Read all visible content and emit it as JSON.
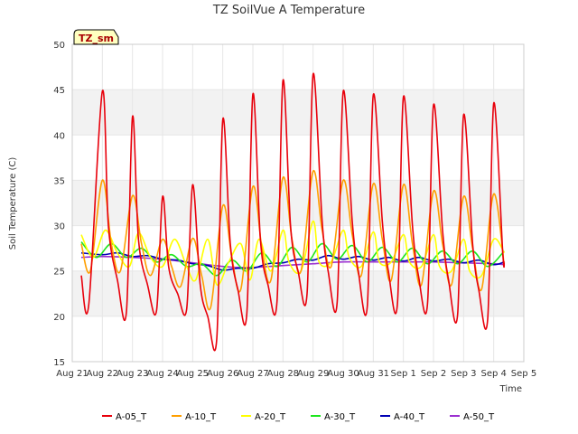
{
  "chart_data": {
    "type": "line",
    "title": "TZ SoilVue A Temperature",
    "xlabel": "Time",
    "ylabel": "Soil Temperature (C)",
    "ylim": [
      15,
      50
    ],
    "yticks": [
      15,
      20,
      25,
      30,
      35,
      40,
      45,
      50
    ],
    "xticks": [
      "Aug 21",
      "Aug 22",
      "Aug 23",
      "Aug 24",
      "Aug 25",
      "Aug 26",
      "Aug 27",
      "Aug 28",
      "Aug 29",
      "Aug 30",
      "Aug 31",
      "Sep 1",
      "Sep 2",
      "Sep 3",
      "Sep 4",
      "Sep 5"
    ],
    "xlim_days": [
      0,
      15
    ],
    "station_badge": "TZ_sm",
    "banding": "alternating grey bands",
    "legend_position": "bottom",
    "series": [
      {
        "name": "A-05_T",
        "color": "#e8000b",
        "x": [
          0.3,
          0.55,
          1.0,
          1.2,
          1.5,
          1.8,
          2.0,
          2.2,
          2.5,
          2.8,
          3.0,
          3.2,
          3.5,
          3.8,
          4.0,
          4.25,
          4.5,
          4.8,
          5.0,
          5.25,
          5.5,
          5.8,
          6.0,
          6.25,
          6.5,
          6.8,
          7.0,
          7.25,
          7.5,
          7.8,
          8.0,
          8.3,
          8.5,
          8.8,
          9.0,
          9.3,
          9.5,
          9.8,
          10.0,
          10.3,
          10.5,
          10.8,
          11.0,
          11.3,
          11.5,
          11.8,
          12.0,
          12.3,
          12.5,
          12.8,
          13.0,
          13.3,
          13.5,
          13.8,
          14.0,
          14.3,
          14.35
        ],
        "y": [
          24.5,
          21.3,
          44.8,
          30.0,
          24.0,
          20.5,
          42.0,
          28.5,
          23.5,
          20.6,
          33.2,
          25.5,
          22.5,
          20.8,
          34.5,
          23.5,
          20.0,
          17.5,
          41.7,
          28.0,
          23.0,
          20.3,
          44.5,
          28.5,
          23.5,
          21.6,
          46.0,
          30.0,
          25.0,
          22.5,
          46.7,
          30.5,
          25.0,
          21.5,
          44.8,
          30.5,
          25.0,
          21.1,
          44.4,
          30.5,
          25.0,
          21.3,
          44.2,
          30.0,
          24.5,
          21.3,
          43.3,
          29.5,
          24.0,
          20.2,
          42.2,
          28.0,
          23.0,
          19.7,
          43.5,
          27.0,
          26.0
        ]
      },
      {
        "name": "A-10_T",
        "color": "#ff9f00",
        "x": [
          0.3,
          0.6,
          1.0,
          1.3,
          1.6,
          2.0,
          2.3,
          2.6,
          3.0,
          3.3,
          3.6,
          4.0,
          4.3,
          4.6,
          5.0,
          5.3,
          5.6,
          6.0,
          6.3,
          6.6,
          7.0,
          7.3,
          7.6,
          8.0,
          8.3,
          8.6,
          9.0,
          9.3,
          9.6,
          10.0,
          10.3,
          10.6,
          11.0,
          11.3,
          11.6,
          12.0,
          12.3,
          12.6,
          13.0,
          13.3,
          13.6,
          14.0,
          14.35
        ],
        "y": [
          28.0,
          25.0,
          35.0,
          28.0,
          25.0,
          33.3,
          28.0,
          24.5,
          28.5,
          25.5,
          23.3,
          28.6,
          24.5,
          21.0,
          32.2,
          26.5,
          23.0,
          34.3,
          27.5,
          24.0,
          35.3,
          28.5,
          25.0,
          36.0,
          29.5,
          25.5,
          35.0,
          29.0,
          24.5,
          34.6,
          28.5,
          24.0,
          34.5,
          28.0,
          23.5,
          33.8,
          28.0,
          23.5,
          33.2,
          27.5,
          23.0,
          33.5,
          25.6
        ]
      },
      {
        "name": "A-20_T",
        "color": "#ffff00",
        "x": [
          0.3,
          0.7,
          1.1,
          1.5,
          1.9,
          2.2,
          2.6,
          3.0,
          3.4,
          3.8,
          4.1,
          4.5,
          4.8,
          5.2,
          5.6,
          5.9,
          6.2,
          6.6,
          7.0,
          7.2,
          7.6,
          8.0,
          8.2,
          8.6,
          9.0,
          9.2,
          9.6,
          10.0,
          10.2,
          10.6,
          11.0,
          11.2,
          11.6,
          12.0,
          12.2,
          12.6,
          13.0,
          13.2,
          13.6,
          14.0,
          14.35
        ],
        "y": [
          29.0,
          26.5,
          29.5,
          27.0,
          25.5,
          29.2,
          26.5,
          25.5,
          28.5,
          25.5,
          24.0,
          28.5,
          23.5,
          26.0,
          28.0,
          24.0,
          28.5,
          25.0,
          29.5,
          26.0,
          25.0,
          30.5,
          26.0,
          26.0,
          29.5,
          26.5,
          25.5,
          29.3,
          26.0,
          26.0,
          29.0,
          26.0,
          25.5,
          29.0,
          25.5,
          25.0,
          28.5,
          25.0,
          24.5,
          28.5,
          27.0
        ]
      },
      {
        "name": "A-30_T",
        "color": "#1ee61e",
        "x": [
          0.3,
          0.8,
          1.3,
          1.8,
          2.3,
          2.8,
          3.3,
          3.8,
          4.3,
          4.8,
          5.3,
          5.8,
          6.3,
          6.8,
          7.3,
          7.8,
          8.3,
          8.8,
          9.3,
          9.8,
          10.3,
          10.8,
          11.3,
          11.8,
          12.3,
          12.8,
          13.3,
          13.8,
          14.35
        ],
        "y": [
          28.2,
          26.5,
          28.0,
          26.5,
          27.5,
          26.0,
          26.8,
          25.5,
          25.8,
          24.5,
          26.2,
          25.0,
          27.0,
          25.5,
          27.6,
          26.0,
          28.0,
          26.3,
          27.8,
          26.0,
          27.6,
          26.0,
          27.5,
          25.8,
          27.2,
          25.8,
          27.2,
          25.5,
          27.2
        ]
      },
      {
        "name": "A-40_T",
        "color": "#0000b4",
        "x": [
          0.3,
          1.0,
          1.5,
          2.0,
          2.5,
          3.0,
          3.5,
          4.0,
          4.5,
          5.0,
          5.5,
          6.0,
          6.5,
          7.0,
          7.5,
          8.0,
          8.5,
          9.0,
          9.5,
          10.0,
          10.5,
          11.0,
          11.5,
          12.0,
          12.5,
          13.0,
          13.5,
          14.0,
          14.35
        ],
        "y": [
          27.0,
          26.8,
          27.0,
          26.6,
          26.7,
          26.3,
          26.2,
          25.8,
          25.6,
          25.1,
          25.3,
          25.3,
          25.8,
          25.9,
          26.3,
          26.2,
          26.7,
          26.3,
          26.6,
          26.2,
          26.5,
          26.1,
          26.5,
          26.1,
          26.3,
          25.9,
          26.2,
          25.7,
          26.0
        ]
      },
      {
        "name": "A-50_T",
        "color": "#9b30d0",
        "x": [
          0.3,
          1.0,
          2.0,
          3.0,
          4.0,
          5.0,
          5.5,
          6.0,
          7.0,
          8.0,
          9.0,
          10.0,
          11.0,
          12.0,
          13.0,
          14.0,
          14.35
        ],
        "y": [
          26.5,
          26.6,
          26.5,
          26.3,
          25.9,
          25.5,
          25.4,
          25.4,
          25.6,
          25.8,
          26.0,
          26.0,
          26.0,
          26.0,
          25.9,
          25.8,
          25.7
        ]
      }
    ]
  }
}
